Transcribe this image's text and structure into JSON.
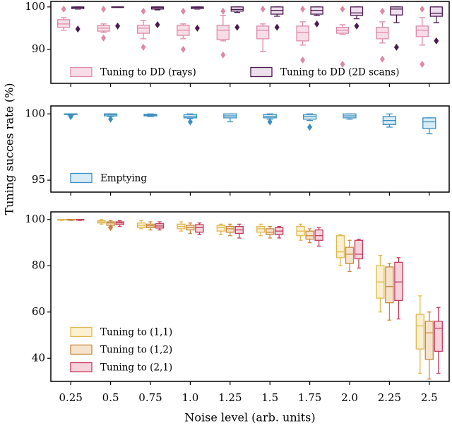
{
  "chart_data": [
    {
      "type": "box",
      "ylim": [
        82,
        101.3
      ],
      "yticks": [
        90,
        100
      ],
      "legend": "lower center",
      "series": [
        {
          "name": "Tuning to DD (rays)",
          "color": "#dd8aa6",
          "fill": "#f9dde6",
          "boxes": [
            {
              "whislo": 94.5,
              "q1": 95.2,
              "med": 96,
              "q3": 97,
              "whishi": 97.5,
              "fliers": [
                99.5
              ]
            },
            {
              "whislo": 94,
              "q1": 94.3,
              "med": 95,
              "q3": 95.6,
              "whishi": 96,
              "fliers": [
                99.5,
                92.7
              ]
            },
            {
              "whislo": 92.5,
              "q1": 93.8,
              "med": 95,
              "q3": 95.7,
              "whishi": 96.8,
              "fliers": [
                99,
                90.5
              ]
            },
            {
              "whislo": 92.5,
              "q1": 93.3,
              "med": 94.5,
              "q3": 95.7,
              "whishi": 96,
              "fliers": [
                99,
                90
              ]
            },
            {
              "whislo": 92,
              "q1": 92.3,
              "med": 94.5,
              "q3": 95.7,
              "whishi": 98,
              "fliers": [
                99,
                88.7
              ]
            },
            {
              "whislo": 89.5,
              "q1": 92.5,
              "med": 94.5,
              "q3": 95.5,
              "whishi": 96,
              "fliers": [
                99.5
              ]
            },
            {
              "whislo": 91,
              "q1": 92,
              "med": 94,
              "q3": 95.5,
              "whishi": 96.5,
              "fliers": [
                99.5,
                87.5
              ]
            },
            {
              "whislo": 93.5,
              "q1": 93.8,
              "med": 94.5,
              "q3": 95.2,
              "whishi": 95.8,
              "fliers": [
                99.5,
                86.5
              ]
            },
            {
              "whislo": 91.5,
              "q1": 92.5,
              "med": 94,
              "q3": 95.2,
              "whishi": 96.5,
              "fliers": [
                99,
                87.7
              ]
            },
            {
              "whislo": 91,
              "q1": 93,
              "med": 94.5,
              "q3": 95.5,
              "whishi": 97.5,
              "fliers": [
                99.5,
                86.5
              ]
            }
          ]
        },
        {
          "name": "Tuning to DD (2D scans)",
          "color": "#4b1a4f",
          "fill": "#ece0ec",
          "boxes": [
            {
              "whislo": 99.5,
              "q1": 99.6,
              "med": 99.9,
              "q3": 100,
              "whishi": 100,
              "fliers": [
                94.8
              ]
            },
            {
              "whislo": 99.9,
              "q1": 99.9,
              "med": 100,
              "q3": 100,
              "whishi": 100,
              "fliers": [
                95.5
              ]
            },
            {
              "whislo": 99.3,
              "q1": 99.5,
              "med": 99.8,
              "q3": 100,
              "whishi": 100,
              "fliers": [
                95.8
              ]
            },
            {
              "whislo": 99.5,
              "q1": 99.6,
              "med": 99.9,
              "q3": 100,
              "whishi": 100,
              "fliers": [
                95
              ]
            },
            {
              "whislo": 98.7,
              "q1": 99,
              "med": 99.4,
              "q3": 100,
              "whishi": 100,
              "fliers": [
                95.2
              ]
            },
            {
              "whislo": 97.8,
              "q1": 98.3,
              "med": 99.2,
              "q3": 100,
              "whishi": 100,
              "fliers": [
                95.2
              ]
            },
            {
              "whislo": 98,
              "q1": 98.3,
              "med": 99.2,
              "q3": 100,
              "whishi": 100,
              "fliers": [
                96
              ]
            },
            {
              "whislo": 97.2,
              "q1": 98,
              "med": 98.6,
              "q3": 100,
              "whishi": 100,
              "fliers": [
                95.5
              ]
            },
            {
              "whislo": 96.3,
              "q1": 98.1,
              "med": 99.5,
              "q3": 100,
              "whishi": 100,
              "fliers": [
                90.5
              ]
            },
            {
              "whislo": 96.3,
              "q1": 97.8,
              "med": 98.5,
              "q3": 100,
              "whishi": 100,
              "fliers": [
                92
              ]
            }
          ]
        }
      ]
    },
    {
      "type": "box",
      "ylim": [
        94.1,
        100.6
      ],
      "yticks": [
        95,
        100
      ],
      "legend": "lower left",
      "ylabel": "Tuning succes rate (%)",
      "series": [
        {
          "name": "Emptying",
          "color": "#3b8fc0",
          "fill": "#d8ecf6",
          "boxes": [
            {
              "whislo": 99.9,
              "q1": 99.95,
              "med": 100,
              "q3": 100,
              "whishi": 100,
              "fliers": [
                99.8
              ]
            },
            {
              "whislo": 99.8,
              "q1": 99.85,
              "med": 99.95,
              "q3": 100,
              "whishi": 100,
              "fliers": [
                99.6
              ]
            },
            {
              "whislo": 99.8,
              "q1": 99.85,
              "med": 99.9,
              "q3": 99.97,
              "whishi": 100,
              "fliers": []
            },
            {
              "whislo": 99.65,
              "q1": 99.7,
              "med": 99.8,
              "q3": 99.95,
              "whishi": 100,
              "fliers": [
                99.4
              ]
            },
            {
              "whislo": 99.4,
              "q1": 99.7,
              "med": 99.85,
              "q3": 100,
              "whishi": 100,
              "fliers": []
            },
            {
              "whislo": 99.6,
              "q1": 99.7,
              "med": 99.8,
              "q3": 99.95,
              "whishi": 100,
              "fliers": [
                99.4
              ]
            },
            {
              "whislo": 99.5,
              "q1": 99.6,
              "med": 99.8,
              "q3": 99.95,
              "whishi": 100,
              "fliers": [
                99
              ]
            },
            {
              "whislo": 99.6,
              "q1": 99.7,
              "med": 99.85,
              "q3": 100,
              "whishi": 100,
              "fliers": []
            },
            {
              "whislo": 99,
              "q1": 99.2,
              "med": 99.5,
              "q3": 99.8,
              "whishi": 100,
              "fliers": []
            },
            {
              "whislo": 98.5,
              "q1": 98.9,
              "med": 99.4,
              "q3": 99.7,
              "whishi": 99.7,
              "fliers": []
            }
          ]
        }
      ]
    },
    {
      "type": "box",
      "ylim": [
        30,
        103.3
      ],
      "yticks": [
        40,
        60,
        80,
        100
      ],
      "legend": "lower left",
      "xlabel": "Noise level (arb. units)",
      "categories": [
        "0.25",
        "0.5",
        "0.75",
        "1.0",
        "1.25",
        "1.5",
        "1.75",
        "2.0",
        "2.25",
        "2.5"
      ],
      "series": [
        {
          "name": "Tuning to (1,1)",
          "color": "#e0b850",
          "fill": "#faf0d2",
          "boxes": [
            {
              "whislo": 99.6,
              "q1": 99.8,
              "med": 100,
              "q3": 100,
              "whishi": 100,
              "fliers": []
            },
            {
              "whislo": 98,
              "q1": 98.5,
              "med": 99,
              "q3": 99.5,
              "whishi": 100,
              "fliers": []
            },
            {
              "whislo": 96,
              "q1": 96.5,
              "med": 97.5,
              "q3": 98.5,
              "whishi": 99.5,
              "fliers": []
            },
            {
              "whislo": 95,
              "q1": 96,
              "med": 97,
              "q3": 98,
              "whishi": 99,
              "fliers": []
            },
            {
              "whislo": 93.5,
              "q1": 95,
              "med": 96.5,
              "q3": 97.5,
              "whishi": 98,
              "fliers": []
            },
            {
              "whislo": 93,
              "q1": 94.5,
              "med": 96,
              "q3": 97,
              "whishi": 98,
              "fliers": []
            },
            {
              "whislo": 91,
              "q1": 93,
              "med": 95,
              "q3": 97,
              "whishi": 98,
              "fliers": []
            },
            {
              "whislo": 80,
              "q1": 83.5,
              "med": 86,
              "q3": 93,
              "whishi": 93.5,
              "fliers": []
            },
            {
              "whislo": 60,
              "q1": 66,
              "med": 73,
              "q3": 80,
              "whishi": 84.5,
              "fliers": []
            },
            {
              "whislo": 33.5,
              "q1": 44,
              "med": 54,
              "q3": 59,
              "whishi": 67,
              "fliers": []
            }
          ]
        },
        {
          "name": "Tuning to (1,2)",
          "color": "#c7873e",
          "fill": "#f6e3cc",
          "boxes": [
            {
              "whislo": 99.6,
              "q1": 99.8,
              "med": 100,
              "q3": 100,
              "whishi": 100,
              "fliers": []
            },
            {
              "whislo": 97,
              "q1": 97.5,
              "med": 98.5,
              "q3": 99,
              "whishi": 99.5,
              "fliers": [
                96.5
              ]
            },
            {
              "whislo": 95.5,
              "q1": 96.5,
              "med": 97.3,
              "q3": 98,
              "whishi": 99,
              "fliers": []
            },
            {
              "whislo": 94,
              "q1": 95.5,
              "med": 96.5,
              "q3": 97.5,
              "whishi": 98.5,
              "fliers": []
            },
            {
              "whislo": 93,
              "q1": 94.5,
              "med": 96,
              "q3": 97,
              "whishi": 98,
              "fliers": []
            },
            {
              "whislo": 92,
              "q1": 93.5,
              "med": 94.5,
              "q3": 96,
              "whishi": 97,
              "fliers": []
            },
            {
              "whislo": 90,
              "q1": 91.5,
              "med": 93,
              "q3": 95,
              "whishi": 96,
              "fliers": []
            },
            {
              "whislo": 77.5,
              "q1": 81,
              "med": 85,
              "q3": 88,
              "whishi": 91,
              "fliers": []
            },
            {
              "whislo": 56.5,
              "q1": 64,
              "med": 71,
              "q3": 79.5,
              "whishi": 81,
              "fliers": []
            },
            {
              "whislo": 31,
              "q1": 39.5,
              "med": 51,
              "q3": 56,
              "whishi": 60,
              "fliers": []
            }
          ]
        },
        {
          "name": "Tuning to (2,1)",
          "color": "#c43b5c",
          "fill": "#f7d3dc",
          "boxes": [
            {
              "whislo": 99.6,
              "q1": 99.8,
              "med": 100,
              "q3": 100,
              "whishi": 100,
              "fliers": []
            },
            {
              "whislo": 97,
              "q1": 97.8,
              "med": 98.5,
              "q3": 99,
              "whishi": 99.5,
              "fliers": []
            },
            {
              "whislo": 95.5,
              "q1": 96.3,
              "med": 97.2,
              "q3": 98.2,
              "whishi": 99,
              "fliers": []
            },
            {
              "whislo": 93.5,
              "q1": 94.5,
              "med": 96.5,
              "q3": 97.8,
              "whishi": 98.5,
              "fliers": []
            },
            {
              "whislo": 92,
              "q1": 94,
              "med": 95.5,
              "q3": 97,
              "whishi": 98,
              "fliers": []
            },
            {
              "whislo": 92,
              "q1": 93.5,
              "med": 95,
              "q3": 96.5,
              "whishi": 97,
              "fliers": []
            },
            {
              "whislo": 88.5,
              "q1": 91,
              "med": 93,
              "q3": 95.5,
              "whishi": 96.5,
              "fliers": []
            },
            {
              "whislo": 79,
              "q1": 83,
              "med": 85,
              "q3": 91,
              "whishi": 91.5,
              "fliers": []
            },
            {
              "whislo": 57,
              "q1": 65,
              "med": 73,
              "q3": 81.5,
              "whishi": 83.5,
              "fliers": []
            },
            {
              "whislo": 33.5,
              "q1": 43,
              "med": 53,
              "q3": 56,
              "whishi": 62,
              "fliers": []
            }
          ]
        }
      ]
    }
  ]
}
